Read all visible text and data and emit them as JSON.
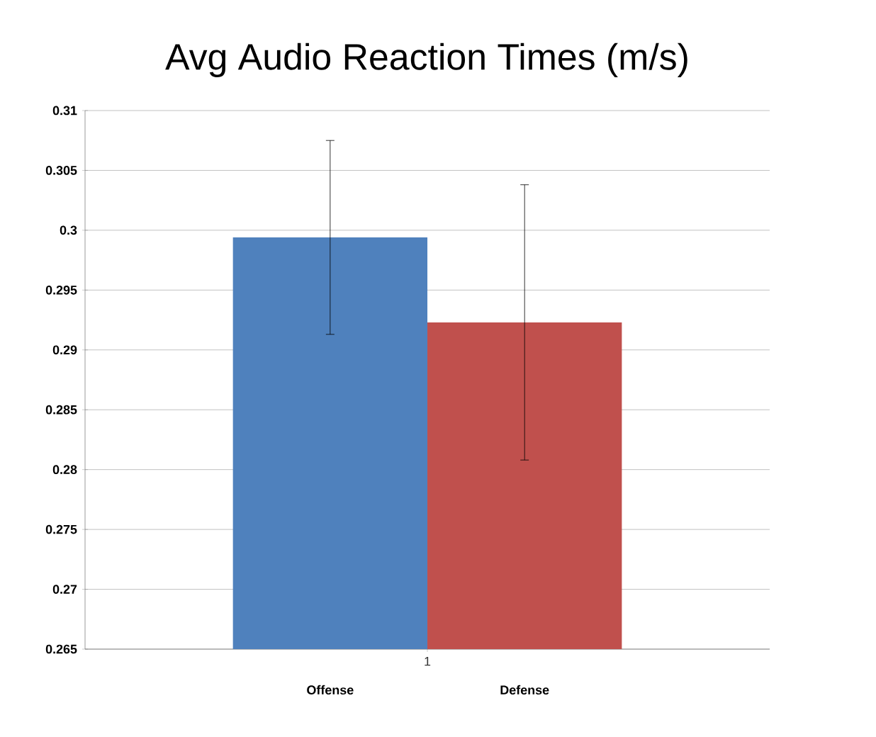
{
  "chart_data": {
    "type": "bar",
    "title": "Avg Audio Reaction Times (m/s)",
    "categories": [
      "1"
    ],
    "series": [
      {
        "name": "Offense",
        "color": "#4f81bd",
        "values": [
          0.2994
        ],
        "errors": [
          0.0081
        ]
      },
      {
        "name": "Defense",
        "color": "#c0504d",
        "values": [
          0.2923
        ],
        "errors": [
          0.0115
        ]
      }
    ],
    "ylim": [
      0.265,
      0.31
    ],
    "yticks": [
      0.265,
      0.27,
      0.275,
      0.28,
      0.285,
      0.29,
      0.295,
      0.3,
      0.305,
      0.31
    ],
    "grid": "y"
  }
}
